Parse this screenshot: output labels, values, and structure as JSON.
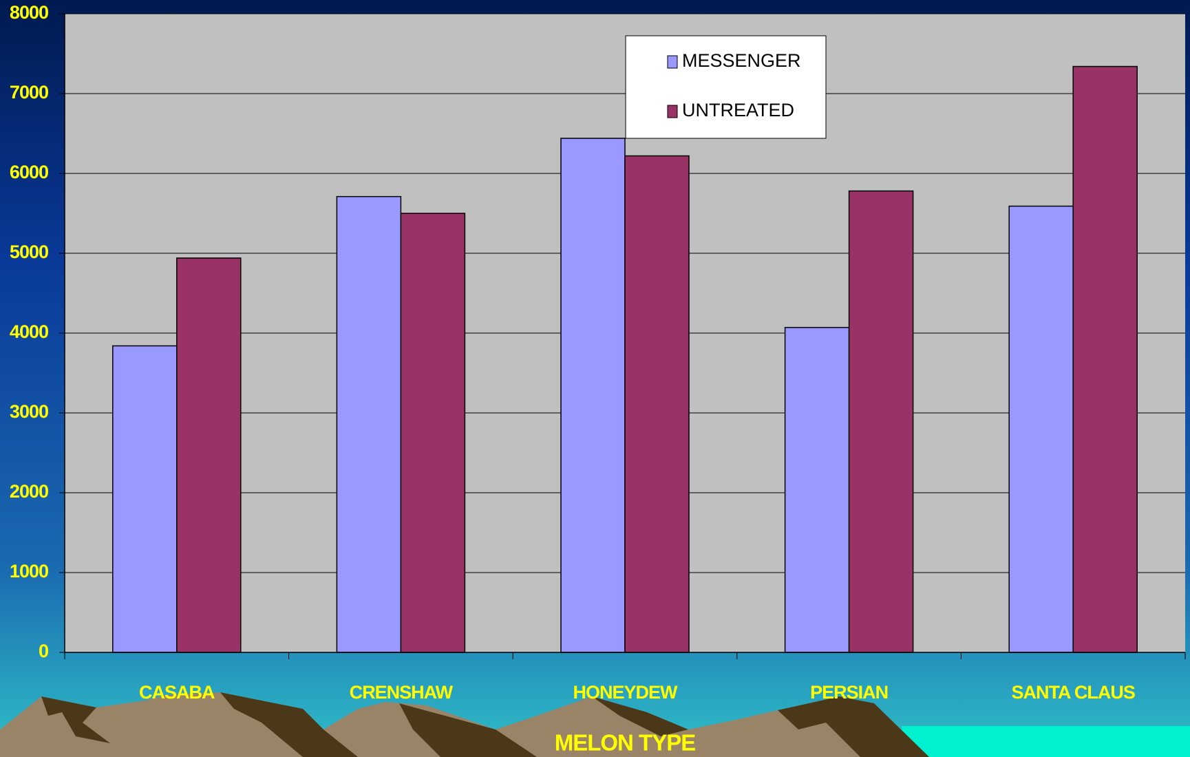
{
  "chart_data": {
    "type": "bar",
    "x_label": "MELON TYPE",
    "categories": [
      "CASABA",
      "CRENSHAW",
      "HONEYDEW",
      "PERSIAN",
      "SANTA CLAUS"
    ],
    "series": [
      {
        "name": "MESSENGER",
        "color": "#9999ff",
        "values": [
          3840,
          5710,
          6440,
          4070,
          5590
        ]
      },
      {
        "name": "UNTREATED",
        "color": "#993366",
        "values": [
          4940,
          5500,
          6220,
          5780,
          7340
        ]
      }
    ],
    "ylim": [
      0,
      8000
    ],
    "yticks": [
      0,
      1000,
      2000,
      3000,
      4000,
      5000,
      6000,
      7000,
      8000
    ],
    "grid": true,
    "legend": "top"
  }
}
